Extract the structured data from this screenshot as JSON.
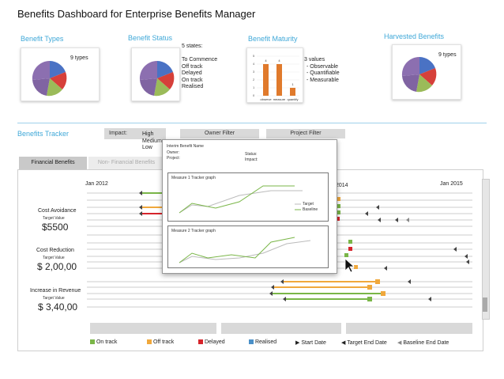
{
  "page_title": "Benefits Dashboard for Enterprise Benefits Manager",
  "panels": {
    "types": {
      "title": "Benefit Types",
      "note": "9 types"
    },
    "status": {
      "title": "Benefit Status",
      "states_title": "5 states:",
      "states": [
        "To Commence",
        "Off track",
        "Delayed",
        "On track",
        "Realised"
      ]
    },
    "maturity": {
      "title": "Benefit Maturity",
      "values_title": "3 values",
      "values": [
        "- Observable",
        "- Quantifiable",
        "- Measurable"
      ],
      "bar_labels": [
        "observe",
        "measure",
        "quantify"
      ],
      "bar_values": [
        4,
        4,
        1
      ],
      "y_ticks": [
        "5",
        "4",
        "3",
        "2",
        "1",
        "0"
      ]
    },
    "harvested": {
      "title": "Harvested Benefits",
      "note": "9 types"
    }
  },
  "tracker": {
    "title": "Benefits Tracker",
    "impact_label": "Impact:",
    "impact_options": [
      "High",
      "Medium",
      "Low"
    ],
    "owner_filter": "Owner Filter",
    "project_filter": "Project Filter",
    "tabs": [
      "Financial Benefits",
      "Non- Financial Benefits"
    ],
    "timeline": [
      "Jan 2012",
      "2014",
      "Jan 2015"
    ],
    "groups": [
      {
        "name": "Cost Avoidance",
        "target_label": "Target Value",
        "value": "$5500"
      },
      {
        "name": "Cost Reduction",
        "target_label": "Target Value",
        "value": "$ 2,00,00"
      },
      {
        "name": "Increase in Revenue",
        "target_label": "Target Value",
        "value": "$ 3,40,00"
      }
    ],
    "legend": [
      {
        "label": "On track",
        "color": "#7ab648"
      },
      {
        "label": "Off track",
        "color": "#f0a83c"
      },
      {
        "label": "Delayed",
        "color": "#d6242b"
      },
      {
        "label": "Realised",
        "color": "#4a90c8"
      },
      {
        "label": "Start Date",
        "color": "#444444"
      },
      {
        "label": "Target End Date",
        "color": "#444444"
      },
      {
        "label": "Baseline End Date",
        "color": "#888888"
      }
    ]
  },
  "popup": {
    "name_label": "Interim Benefit Name",
    "owner_label": "Owner:",
    "project_label": "Project:",
    "status_label": "Status:",
    "impact_label": "Impact:",
    "graph1_title": "Measure 1 Tracker graph",
    "graph2_title": "Measure 2 Tracker graph",
    "legend_target": "Target",
    "legend_baseline": "Baseline"
  },
  "colors": {
    "accent": "#3fa8d8",
    "on_track": "#7ab648",
    "off_track": "#f0a83c",
    "delayed": "#d6242b",
    "realised": "#4a90c8",
    "bar_orange": "#e07a2c"
  }
}
